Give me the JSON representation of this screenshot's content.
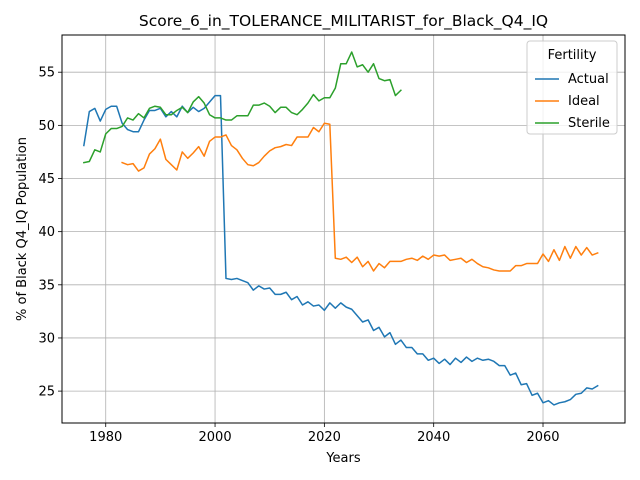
{
  "chart_data": {
    "type": "line",
    "title": "Score_6_in_TOLERANCE_MILITARIST_for_Black_Q4_IQ",
    "xlabel": "Years",
    "ylabel": "% of Black Q4_IQ Population",
    "xlim": [
      1972,
      2075
    ],
    "ylim": [
      22,
      58.5
    ],
    "xticks": [
      1980,
      2000,
      2020,
      2040,
      2060
    ],
    "yticks": [
      25,
      30,
      35,
      40,
      45,
      50,
      55
    ],
    "grid": true,
    "legend": {
      "title": "Fertility",
      "position": "top-right"
    },
    "series": [
      {
        "name": "Actual",
        "color": "#1f77b4",
        "x": [
          1976,
          1977,
          1978,
          1979,
          1980,
          1981,
          1982,
          1983,
          1984,
          1985,
          1986,
          1987,
          1988,
          1989,
          1990,
          1991,
          1992,
          1993,
          1994,
          1995,
          1996,
          1997,
          1998,
          1999,
          2000,
          2001,
          2002,
          2003,
          2004,
          2005,
          2006,
          2007,
          2008,
          2009,
          2010,
          2011,
          2012,
          2013,
          2014,
          2015,
          2016,
          2017,
          2018,
          2019,
          2020,
          2021,
          2022,
          2023,
          2024,
          2025,
          2026,
          2027,
          2028,
          2029,
          2030,
          2031,
          2032,
          2033,
          2034,
          2035,
          2036,
          2037,
          2038,
          2039,
          2040,
          2041,
          2042,
          2043,
          2044,
          2045,
          2046,
          2047,
          2048,
          2049,
          2050,
          2051,
          2052,
          2053,
          2054,
          2055,
          2056,
          2057,
          2058,
          2059,
          2060,
          2061,
          2062,
          2063,
          2064,
          2065,
          2066,
          2067,
          2068,
          2069,
          2070
        ],
        "y": [
          48.1,
          51.3,
          51.6,
          50.4,
          51.5,
          51.8,
          51.8,
          50.2,
          49.6,
          49.4,
          49.4,
          50.5,
          51.4,
          51.4,
          51.6,
          50.8,
          51.3,
          50.8,
          51.8,
          51.2,
          51.7,
          51.3,
          51.6,
          52.2,
          52.8,
          52.8,
          35.6,
          35.5,
          35.6,
          35.4,
          35.2,
          34.5,
          34.9,
          34.6,
          34.7,
          34.1,
          34.1,
          34.3,
          33.6,
          33.9,
          33.1,
          33.4,
          33.0,
          33.1,
          32.6,
          33.3,
          32.8,
          33.3,
          32.9,
          32.7,
          32.1,
          31.5,
          31.7,
          30.7,
          31.0,
          30.1,
          30.5,
          29.4,
          29.8,
          29.1,
          29.1,
          28.5,
          28.5,
          27.9,
          28.1,
          27.6,
          28.0,
          27.5,
          28.1,
          27.7,
          28.2,
          27.8,
          28.1,
          27.9,
          28.0,
          27.8,
          27.4,
          27.4,
          26.5,
          26.7,
          25.6,
          25.7,
          24.6,
          24.8,
          23.9,
          24.1,
          23.7,
          23.9,
          24.0,
          24.2,
          24.7,
          24.8,
          25.3,
          25.2,
          25.5
        ]
      },
      {
        "name": "Ideal",
        "color": "#ff7f0e",
        "x": [
          1983,
          1984,
          1985,
          1986,
          1987,
          1988,
          1989,
          1990,
          1991,
          1992,
          1993,
          1994,
          1995,
          1996,
          1997,
          1998,
          1999,
          2000,
          2001,
          2002,
          2003,
          2004,
          2005,
          2006,
          2007,
          2008,
          2009,
          2010,
          2011,
          2012,
          2013,
          2014,
          2015,
          2016,
          2017,
          2018,
          2019,
          2020,
          2021,
          2022,
          2023,
          2024,
          2025,
          2026,
          2027,
          2028,
          2029,
          2030,
          2031,
          2032,
          2033,
          2034,
          2035,
          2036,
          2037,
          2038,
          2039,
          2040,
          2041,
          2042,
          2043,
          2044,
          2045,
          2046,
          2047,
          2048,
          2049,
          2050,
          2051,
          2052,
          2053,
          2054,
          2055,
          2056,
          2057,
          2058,
          2059,
          2060,
          2061,
          2062,
          2063,
          2064,
          2065,
          2066,
          2067,
          2068,
          2069,
          2070
        ],
        "y": [
          46.5,
          46.3,
          46.4,
          45.7,
          46.0,
          47.3,
          47.8,
          48.7,
          46.8,
          46.3,
          45.8,
          47.5,
          46.9,
          47.4,
          48.0,
          47.1,
          48.5,
          48.9,
          48.9,
          49.1,
          48.1,
          47.7,
          46.9,
          46.3,
          46.2,
          46.5,
          47.1,
          47.6,
          47.9,
          48.0,
          48.2,
          48.1,
          48.9,
          48.9,
          48.9,
          49.8,
          49.4,
          50.2,
          50.1,
          37.5,
          37.4,
          37.6,
          37.1,
          37.6,
          36.7,
          37.2,
          36.3,
          37.0,
          36.6,
          37.2,
          37.2,
          37.2,
          37.4,
          37.5,
          37.3,
          37.7,
          37.4,
          37.8,
          37.7,
          37.8,
          37.3,
          37.4,
          37.5,
          37.1,
          37.4,
          37.0,
          36.7,
          36.6,
          36.4,
          36.3,
          36.3,
          36.3,
          36.8,
          36.8,
          37.0,
          37.0,
          37.0,
          37.9,
          37.2,
          38.3,
          37.3,
          38.6,
          37.5,
          38.6,
          37.8,
          38.5,
          37.8,
          38.0
        ]
      },
      {
        "name": "Sterile",
        "color": "#2ca02c",
        "x": [
          1976,
          1977,
          1978,
          1979,
          1980,
          1981,
          1982,
          1983,
          1984,
          1985,
          1986,
          1987,
          1988,
          1989,
          1990,
          1991,
          1992,
          1993,
          1994,
          1995,
          1996,
          1997,
          1998,
          1999,
          2000,
          2001,
          2002,
          2003,
          2004,
          2005,
          2006,
          2007,
          2008,
          2009,
          2010,
          2011,
          2012,
          2013,
          2014,
          2015,
          2016,
          2017,
          2018,
          2019,
          2020,
          2021,
          2022,
          2023,
          2024,
          2025,
          2026,
          2027,
          2028,
          2029,
          2030,
          2031,
          2032,
          2033,
          2034
        ],
        "y": [
          46.5,
          46.6,
          47.7,
          47.5,
          49.2,
          49.7,
          49.7,
          49.9,
          50.7,
          50.5,
          51.1,
          50.7,
          51.6,
          51.8,
          51.7,
          51.0,
          51.0,
          51.4,
          51.7,
          51.2,
          52.2,
          52.7,
          52.1,
          51.0,
          50.7,
          50.7,
          50.5,
          50.5,
          50.9,
          50.9,
          50.9,
          51.9,
          51.9,
          52.1,
          51.8,
          51.2,
          51.7,
          51.7,
          51.2,
          51.0,
          51.5,
          52.1,
          52.9,
          52.3,
          52.6,
          52.6,
          53.5,
          55.8,
          55.8,
          56.9,
          55.5,
          55.7,
          55.0,
          55.8,
          54.4,
          54.2,
          54.3,
          52.8,
          53.3
        ]
      }
    ]
  }
}
